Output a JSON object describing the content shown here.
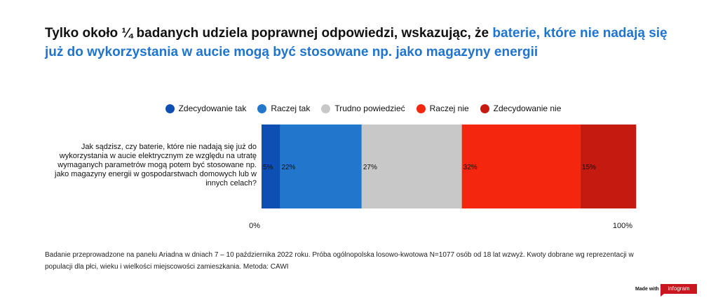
{
  "title": {
    "plain": "Tylko około ¼ badanych udziela poprawnej odpowiedzi, wskazując, że ",
    "highlight": "baterie, które nie nadają się już do wykorzystania w aucie mogą być stosowane np. jako magazyny energii"
  },
  "colors": {
    "highlight": "#1f74d0",
    "brand": "#c9151e"
  },
  "chart_data": {
    "type": "bar",
    "orientation": "horizontal-stacked-100",
    "categories": [
      "Jak sądzisz, czy baterie, które nie nadają się już do wykorzystania w aucie elektrycznym ze względu na utratę wymaganych parametrów mogą potem być stosowane np. jako magazyny energii w gospodarstwach domowych lub w innych celach?"
    ],
    "series": [
      {
        "name": "Zdecydowanie tak",
        "values": [
          5
        ],
        "label": "5%",
        "color": "#0d4fb3"
      },
      {
        "name": "Raczej tak",
        "values": [
          22
        ],
        "label": "22%",
        "color": "#2277cc"
      },
      {
        "name": "Trudno powiedzieć",
        "values": [
          27
        ],
        "label": "27%",
        "color": "#c8c8c8"
      },
      {
        "name": "Raczej nie",
        "values": [
          32
        ],
        "label": "32%",
        "color": "#f5260e"
      },
      {
        "name": "Zdecydowanie nie",
        "values": [
          15
        ],
        "label": "15%",
        "color": "#c41a10"
      }
    ],
    "xlim": [
      0,
      100
    ],
    "axis_labels": {
      "min": "0%",
      "max": "100%"
    },
    "legend_position": "top-center"
  },
  "footnote": "Badanie przeprowadzone na panelu Ariadna w dniach 7 – 10 października 2022 roku. Próba ogólnopolska losowo-kwotowa N=1077 osób od 18 lat wzwyż. Kwoty dobrane wg reprezentacji w populacji dla płci, wieku i wielkości miejscowości zamieszkania. Metoda: CAWI",
  "branding": {
    "made_with": "Made with",
    "brand_name": "infogram"
  }
}
